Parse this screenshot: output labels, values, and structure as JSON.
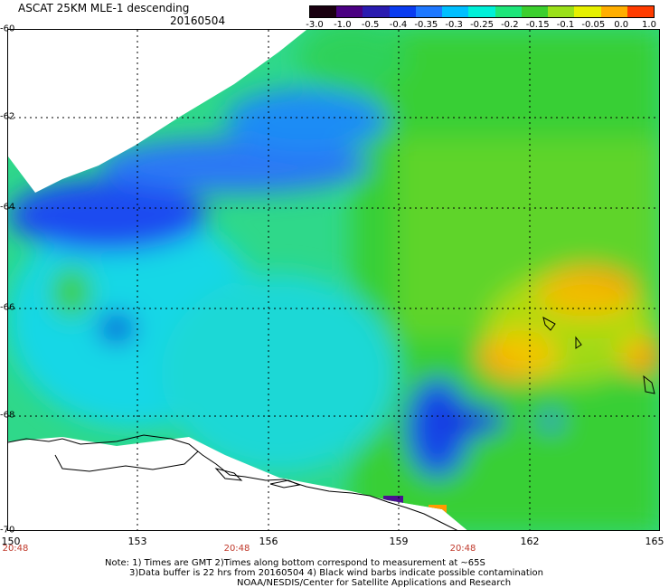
{
  "header": {
    "title": "ASCAT 25KM MLE-1 descending",
    "date": "20160504"
  },
  "colorbar": {
    "labels": [
      "-3.0",
      "-1.0",
      "-0.5",
      "-0.4",
      "-0.35",
      "-0.3",
      "-0.25",
      "-0.2",
      "-0.15",
      "-0.1",
      "-0.05",
      "0.0",
      "1.0"
    ],
    "colors": [
      "#1a0010",
      "#4b0082",
      "#2a1bb0",
      "#0a3cf0",
      "#1e78ff",
      "#00bfff",
      "#00f0d8",
      "#1ee67a",
      "#3ccf2e",
      "#9be01a",
      "#e6f000",
      "#ffae00",
      "#ff3c00"
    ]
  },
  "axes": {
    "lat_labels": [
      "-60",
      "-62",
      "-64",
      "-66",
      "-68",
      "-70"
    ],
    "lon_labels": [
      "150",
      "153",
      "156",
      "159",
      "162",
      "165"
    ],
    "time_labels": [
      "20:48",
      "20:48",
      "20:48"
    ]
  },
  "notes": {
    "line1": "Note: 1) Times are GMT 2)Times along bottom correspond to measurement at ~65S",
    "line2": "3)Data buffer is 22 hrs from 20160504 4) Black wind barbs indicate possible contamination",
    "line3": "NOAA/NESDIS/Center for Satellite Applications and Research"
  }
}
